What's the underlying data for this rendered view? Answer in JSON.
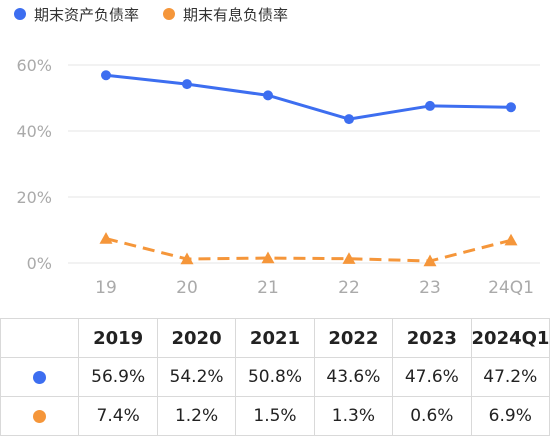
{
  "colors": {
    "series1": "#3d6ef0",
    "series2": "#f5963a",
    "grid": "#e5e5e5",
    "axis_text": "#aaaaaa"
  },
  "legend": [
    {
      "label": "期末资产负债率",
      "color": "#3d6ef0",
      "marker": "circle"
    },
    {
      "label": "期末有息负债率",
      "color": "#f5963a",
      "marker": "circle"
    }
  ],
  "chart_data": {
    "type": "line",
    "categories": [
      "19",
      "20",
      "21",
      "22",
      "23",
      "24Q1"
    ],
    "y_ticks": [
      "60%",
      "40%",
      "20%",
      "0%"
    ],
    "ylim": [
      0,
      60
    ],
    "grid": true,
    "legend_position": "top-left",
    "series": [
      {
        "name": "期末资产负债率",
        "values": [
          56.9,
          54.2,
          50.8,
          43.6,
          47.6,
          47.2
        ],
        "style": "solid",
        "marker": "circle",
        "color": "#3d6ef0"
      },
      {
        "name": "期末有息负债率",
        "values": [
          7.4,
          1.2,
          1.5,
          1.3,
          0.6,
          6.9
        ],
        "style": "dashed",
        "marker": "triangle",
        "color": "#f5963a"
      }
    ]
  },
  "table": {
    "headers": [
      "2019",
      "2020",
      "2021",
      "2022",
      "2023",
      "2024Q1"
    ],
    "rows": [
      {
        "marker_color": "#3d6ef0",
        "cells": [
          "56.9%",
          "54.2%",
          "50.8%",
          "43.6%",
          "47.6%",
          "47.2%"
        ]
      },
      {
        "marker_color": "#f5963a",
        "cells": [
          "7.4%",
          "1.2%",
          "1.5%",
          "1.3%",
          "0.6%",
          "6.9%"
        ]
      }
    ]
  }
}
